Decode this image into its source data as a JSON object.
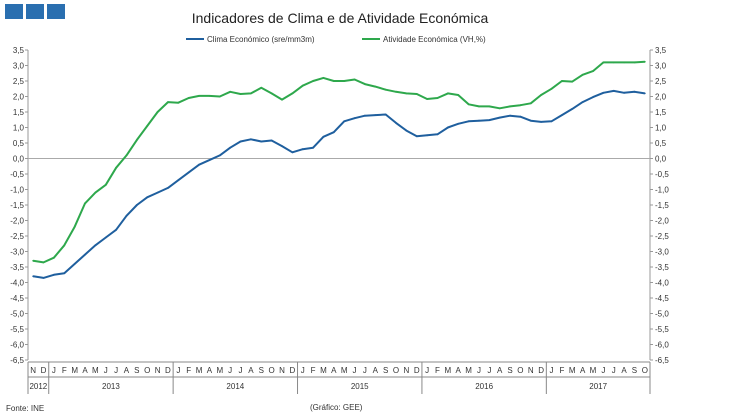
{
  "header": {
    "logo_color": "#2a6fb0"
  },
  "footer": {
    "source": "Fonte: INE",
    "credit": "(Gráfico: GEE)"
  },
  "chart_data": {
    "type": "line",
    "title": "Indicadores de Clima e de Atividade Económica",
    "xlabel": "",
    "ylabel": "",
    "ylim": [
      -6.5,
      3.5
    ],
    "y_ticks": [
      "3,5",
      "3,0",
      "2,5",
      "2,0",
      "1,5",
      "1,0",
      "0,5",
      "0,0",
      "-0,5",
      "-1,0",
      "-1,5",
      "-2,0",
      "-2,5",
      "-3,0",
      "-3,5",
      "-4,0",
      "-4,5",
      "-5,0",
      "-5,5",
      "-6,0",
      "-6,5"
    ],
    "months": [
      "N",
      "D",
      "J",
      "F",
      "M",
      "A",
      "M",
      "J",
      "J",
      "A",
      "S",
      "O",
      "N",
      "D",
      "J",
      "F",
      "M",
      "A",
      "M",
      "J",
      "J",
      "A",
      "S",
      "O",
      "N",
      "D",
      "J",
      "F",
      "M",
      "A",
      "M",
      "J",
      "J",
      "A",
      "S",
      "O",
      "N",
      "D",
      "J",
      "F",
      "M",
      "A",
      "M",
      "J",
      "J",
      "A",
      "S",
      "O",
      "N",
      "D",
      "J",
      "F",
      "M",
      "A",
      "M",
      "J",
      "J",
      "A",
      "S",
      "O"
    ],
    "years": [
      {
        "label": "2012",
        "start": 0,
        "count": 2
      },
      {
        "label": "2013",
        "start": 2,
        "count": 12
      },
      {
        "label": "2014",
        "start": 14,
        "count": 12
      },
      {
        "label": "2015",
        "start": 26,
        "count": 12
      },
      {
        "label": "2016",
        "start": 38,
        "count": 12
      },
      {
        "label": "2017",
        "start": 50,
        "count": 10
      }
    ],
    "series": [
      {
        "name": "Clima Económico (sre/mm3m)",
        "color": "#1f5f9e",
        "values": [
          -3.8,
          -3.85,
          -3.75,
          -3.7,
          -3.4,
          -3.1,
          -2.8,
          -2.55,
          -2.3,
          -1.85,
          -1.5,
          -1.25,
          -1.1,
          -0.95,
          -0.7,
          -0.45,
          -0.2,
          -0.05,
          0.1,
          0.35,
          0.55,
          0.62,
          0.55,
          0.58,
          0.4,
          0.2,
          0.3,
          0.35,
          0.7,
          0.85,
          1.2,
          1.3,
          1.38,
          1.4,
          1.42,
          1.15,
          0.9,
          0.72,
          0.75,
          0.78,
          1.0,
          1.12,
          1.2,
          1.22,
          1.24,
          1.32,
          1.38,
          1.35,
          1.22,
          1.18,
          1.2,
          1.4,
          1.6,
          1.82,
          1.98,
          2.12,
          2.18,
          2.12,
          2.15,
          2.1
        ]
      },
      {
        "name": "Atividade Económica (VH,%)",
        "color": "#2ea84c",
        "values": [
          -3.3,
          -3.35,
          -3.2,
          -2.8,
          -2.2,
          -1.45,
          -1.1,
          -0.85,
          -0.3,
          0.1,
          0.6,
          1.05,
          1.5,
          1.82,
          1.8,
          1.95,
          2.02,
          2.02,
          2.0,
          2.15,
          2.08,
          2.1,
          2.28,
          2.1,
          1.9,
          2.1,
          2.35,
          2.5,
          2.6,
          2.5,
          2.5,
          2.55,
          2.4,
          2.32,
          2.22,
          2.15,
          2.1,
          2.08,
          1.92,
          1.95,
          2.1,
          2.05,
          1.75,
          1.68,
          1.68,
          1.62,
          1.68,
          1.72,
          1.78,
          2.05,
          2.25,
          2.5,
          2.48,
          2.7,
          2.82,
          3.1,
          3.1,
          3.1,
          3.1,
          3.12
        ]
      }
    ],
    "legend_position": "top-center"
  }
}
